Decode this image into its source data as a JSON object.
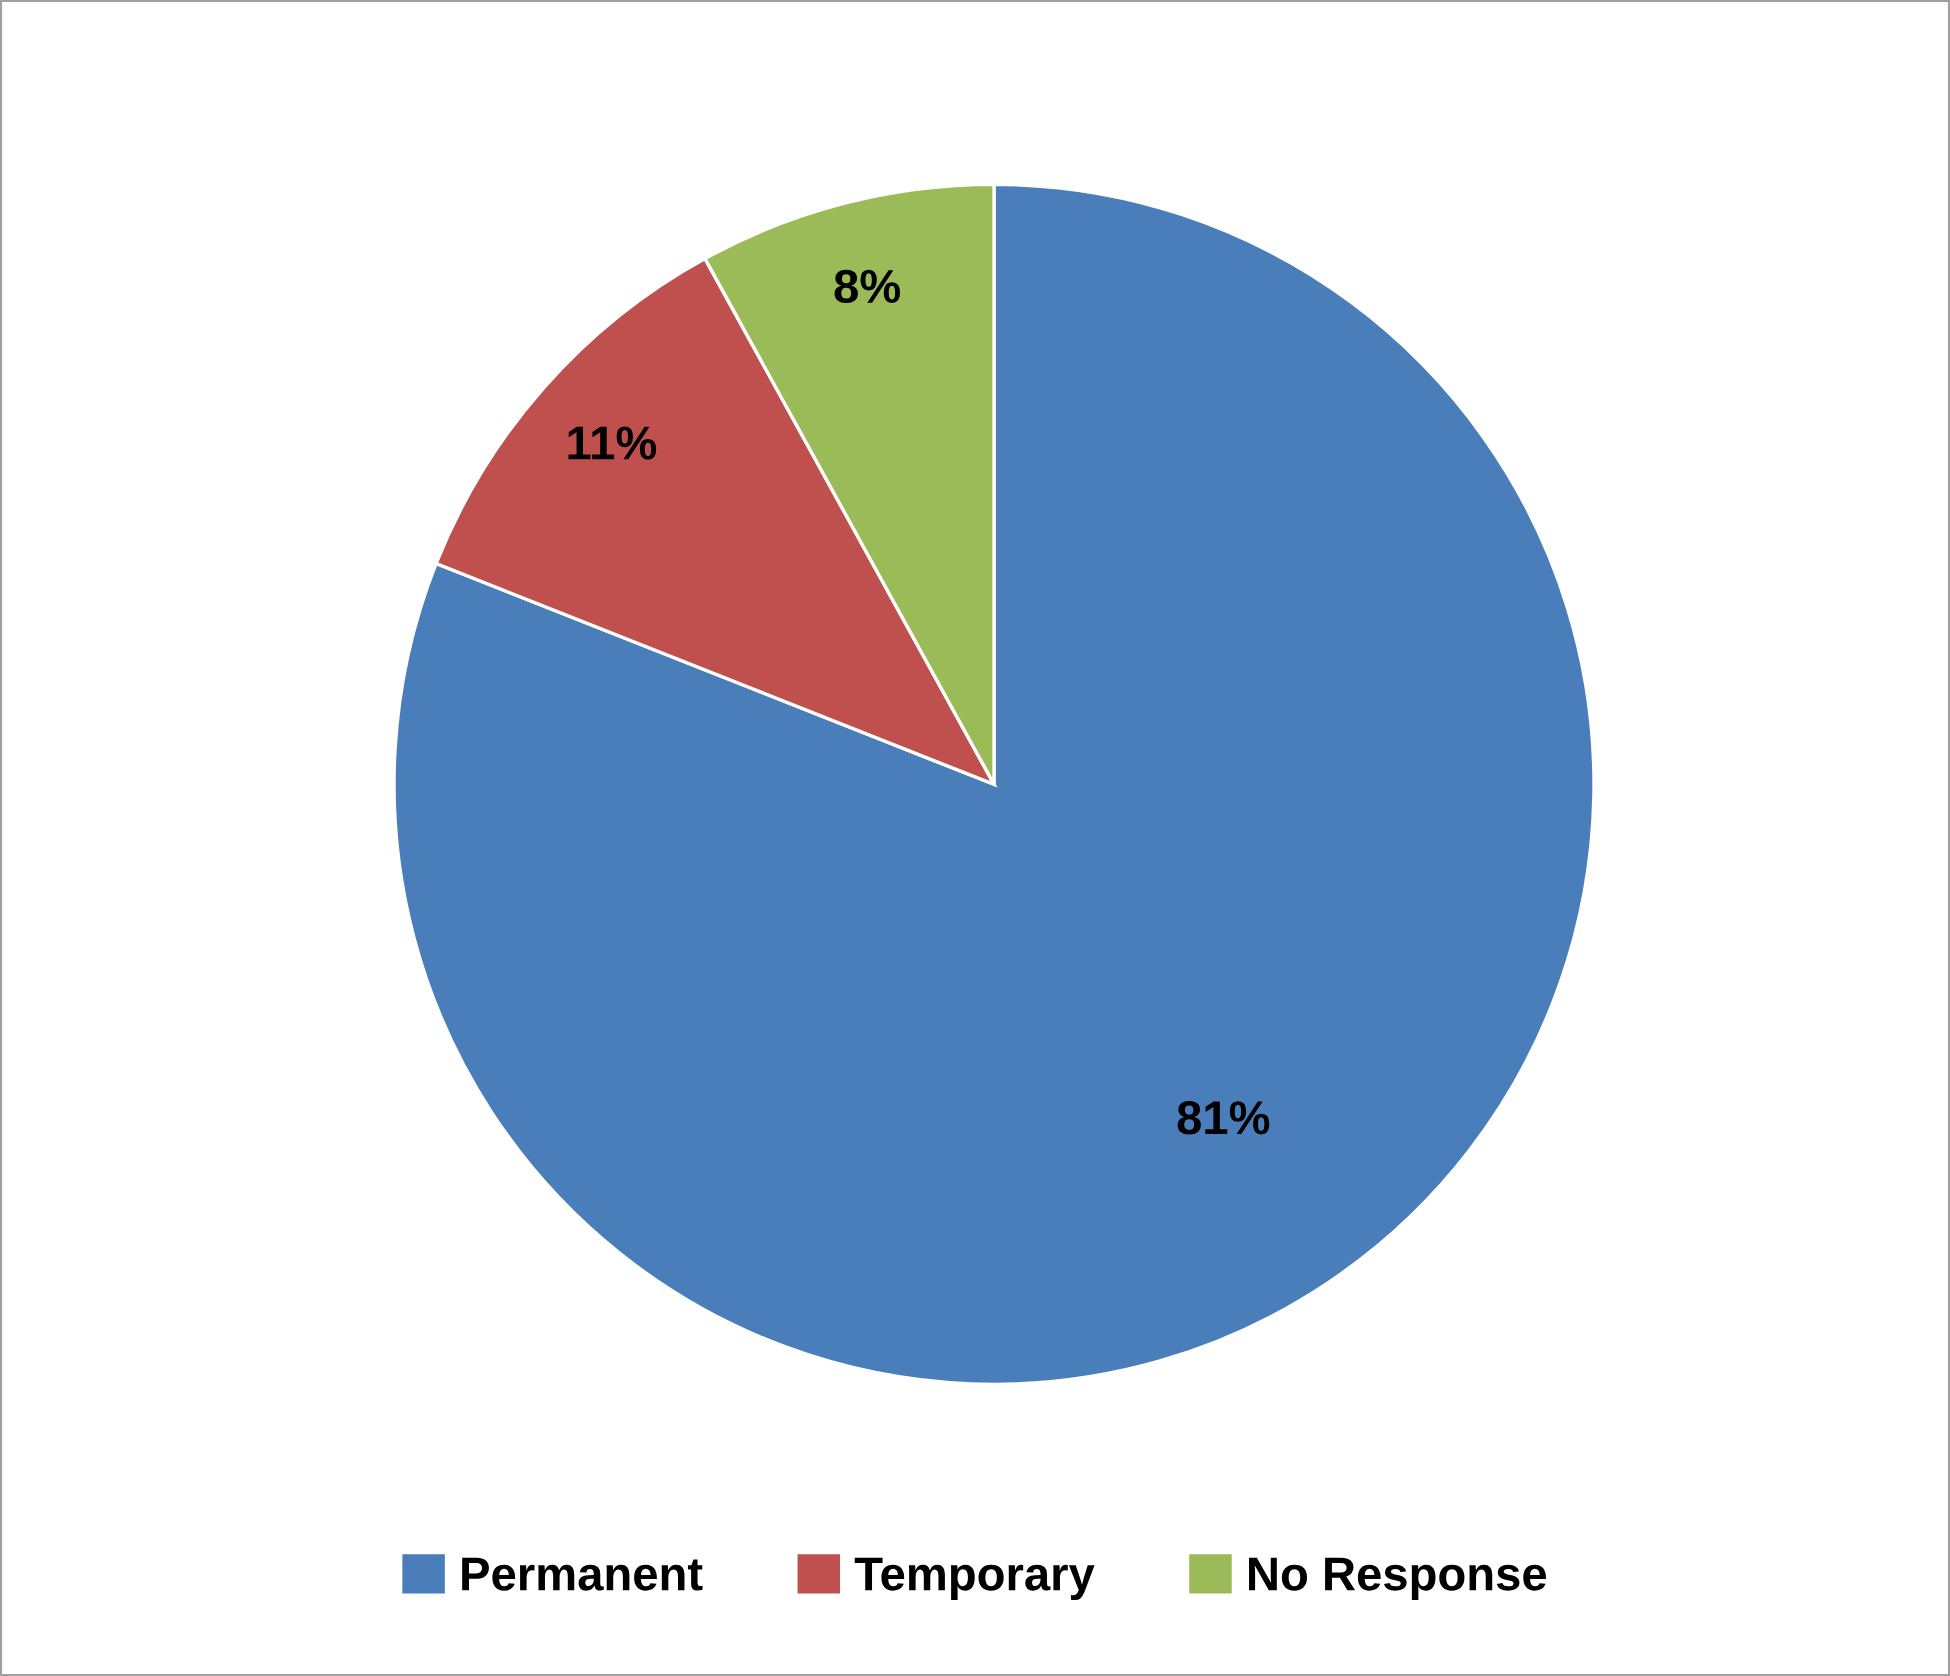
{
  "chart_data": {
    "type": "pie",
    "categories": [
      "Permanent",
      "Temporary",
      "No Response"
    ],
    "values": [
      81,
      11,
      8
    ],
    "colors": [
      "#4a7ebb",
      "#c0504d",
      "#9bbb59"
    ],
    "value_labels": [
      "81%",
      "11%",
      "8%"
    ],
    "legend": "bottom"
  }
}
